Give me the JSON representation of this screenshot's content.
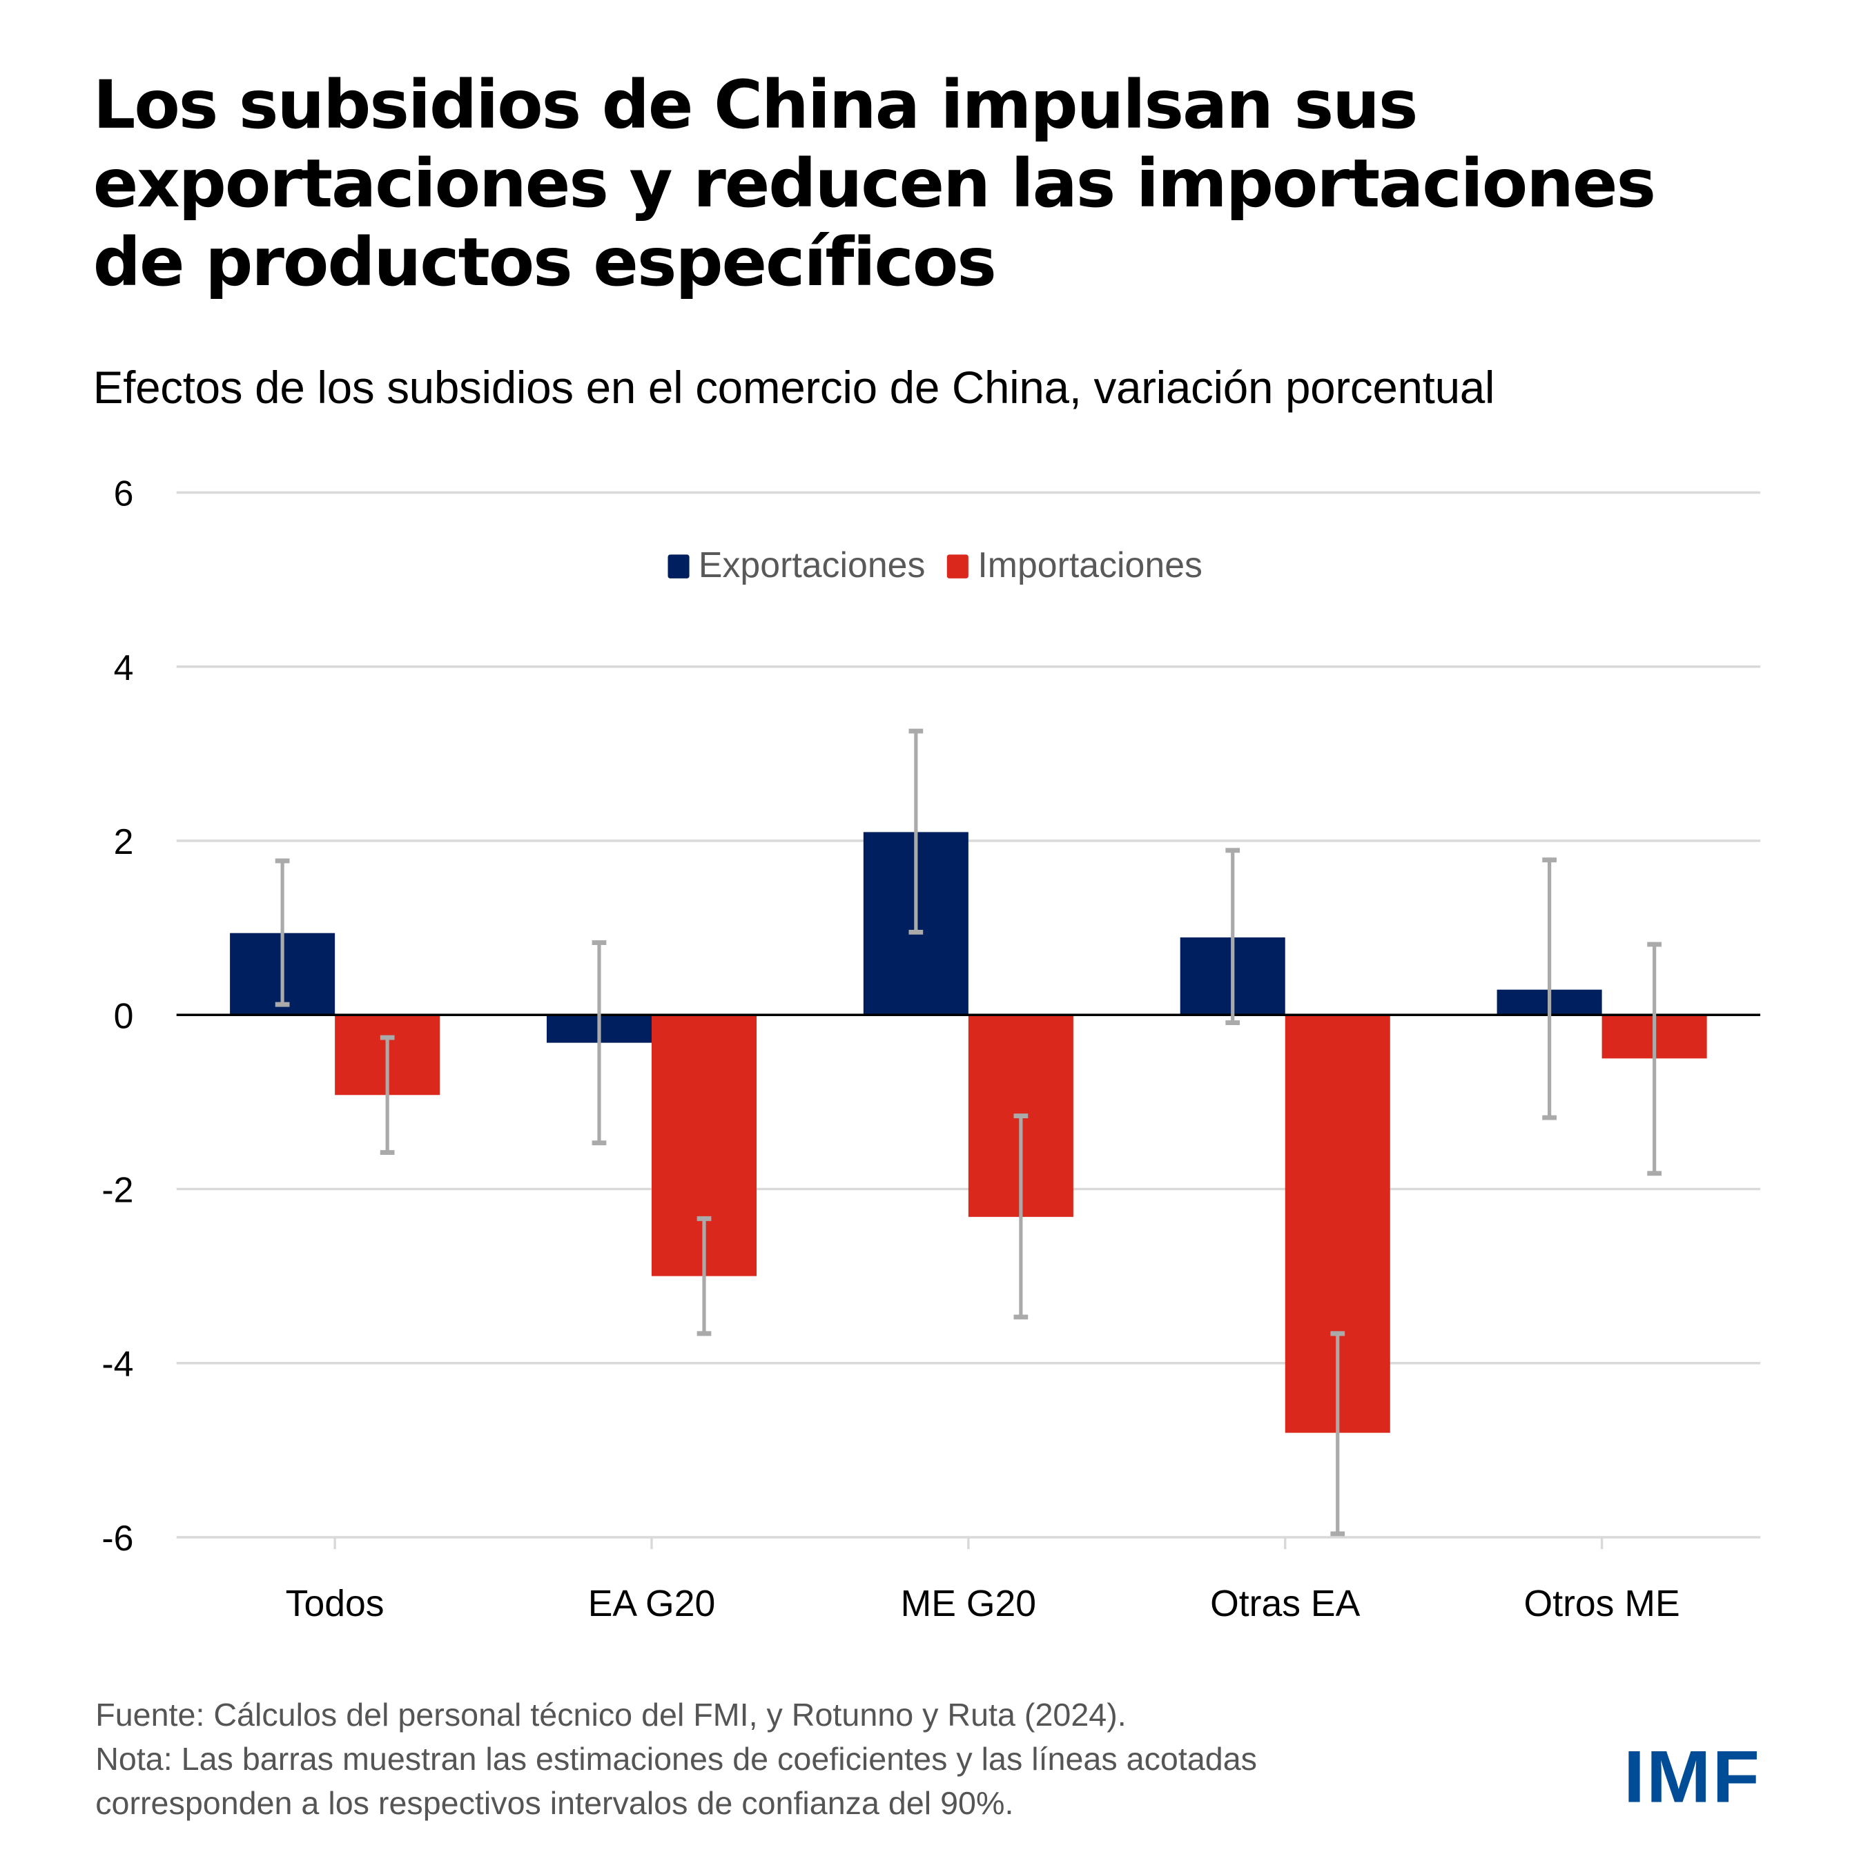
{
  "title": "Los subsidios de China impulsan sus exportaciones y reducen las importaciones de productos específicos",
  "title_lines": [
    "Los subsidios de China impulsan sus",
    "exportaciones y reducen las importaciones",
    "de productos específicos"
  ],
  "subtitle": "Efectos de los subsidios en el comercio de China, variación porcentual",
  "legend": [
    {
      "name": "Exportaciones",
      "color": "#001F5F"
    },
    {
      "name": "Importaciones",
      "color": "#DA291C"
    }
  ],
  "footer": {
    "source": "Fuente: Cálculos del personal técnico del FMI, y Rotunno y Ruta (2024).",
    "note_line1": "Nota: Las barras muestran las estimaciones de coeficientes y las líneas acotadas",
    "note_line2": "corresponden a los respectivos intervalos de confianza del 90%."
  },
  "logo": "IMF",
  "colors": {
    "exports": "#001F5F",
    "imports": "#DA291C",
    "error_bar": "#AAAAAA",
    "gridline": "#D9D9D9",
    "logo": "#004C97"
  },
  "chart_data": {
    "type": "bar",
    "title": "Los subsidios de China impulsan sus exportaciones y reducen las importaciones de productos específicos",
    "subtitle": "Efectos de los subsidios en el comercio de China, variación porcentual",
    "xlabel": "",
    "ylabel": "",
    "categories": [
      "Todos",
      "EA G20",
      "ME G20",
      "Otras EA",
      "Otros ME"
    ],
    "series": [
      {
        "name": "Exportaciones",
        "values": [
          0.94,
          -0.32,
          2.1,
          0.89,
          0.29
        ],
        "ci_low": [
          0.12,
          -1.47,
          0.95,
          -0.09,
          -1.18
        ],
        "ci_high": [
          1.77,
          0.83,
          3.26,
          1.89,
          1.78
        ]
      },
      {
        "name": "Importaciones",
        "values": [
          -0.92,
          -3.0,
          -2.32,
          -4.8,
          -0.5
        ],
        "ci_low": [
          -1.58,
          -3.66,
          -3.47,
          -5.96,
          -1.82
        ],
        "ci_high": [
          -0.26,
          -2.34,
          -1.16,
          -3.66,
          0.81
        ]
      }
    ],
    "ylim": [
      -6,
      6
    ],
    "yticks": [
      6,
      4,
      2,
      0,
      -2,
      -4,
      -6
    ],
    "ytick_labels": [
      "6",
      "4",
      "2",
      "0",
      "-2",
      "-4",
      "-6"
    ],
    "grid": true,
    "legend_position": "top-center",
    "error_bars": "90% confidence intervals"
  }
}
